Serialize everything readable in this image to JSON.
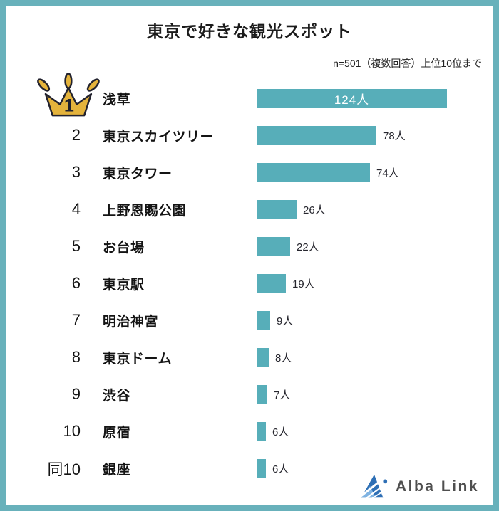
{
  "header": {
    "title": "東京で好きな観光スポット",
    "note": "n=501（複数回答）上位10位まで"
  },
  "chart_data": {
    "type": "bar",
    "orientation": "horizontal",
    "title": "東京で好きな観光スポット",
    "note": "n=501（複数回答）上位10位まで",
    "unit": "人",
    "max_value": 124,
    "value_axis_range": [
      0,
      124
    ],
    "grid": false,
    "legend": false,
    "categories": [
      "浅草",
      "東京スカイツリー",
      "東京タワー",
      "上野恩賜公園",
      "お台場",
      "東京駅",
      "明治神宮",
      "東京ドーム",
      "渋谷",
      "原宿",
      "銀座"
    ],
    "values": [
      124,
      78,
      74,
      26,
      22,
      19,
      9,
      8,
      7,
      6,
      6
    ],
    "rows": [
      {
        "rank": "1",
        "label": "浅草",
        "value": 124,
        "value_label": "124人",
        "crown": true,
        "value_position": "inside"
      },
      {
        "rank": "2",
        "label": "東京スカイツリー",
        "value": 78,
        "value_label": "78人",
        "crown": false,
        "value_position": "outside"
      },
      {
        "rank": "3",
        "label": "東京タワー",
        "value": 74,
        "value_label": "74人",
        "crown": false,
        "value_position": "outside"
      },
      {
        "rank": "4",
        "label": "上野恩賜公園",
        "value": 26,
        "value_label": "26人",
        "crown": false,
        "value_position": "outside"
      },
      {
        "rank": "5",
        "label": "お台場",
        "value": 22,
        "value_label": "22人",
        "crown": false,
        "value_position": "outside"
      },
      {
        "rank": "6",
        "label": "東京駅",
        "value": 19,
        "value_label": "19人",
        "crown": false,
        "value_position": "outside"
      },
      {
        "rank": "7",
        "label": "明治神宮",
        "value": 9,
        "value_label": "9人",
        "crown": false,
        "value_position": "outside"
      },
      {
        "rank": "8",
        "label": "東京ドーム",
        "value": 8,
        "value_label": "8人",
        "crown": false,
        "value_position": "outside"
      },
      {
        "rank": "9",
        "label": "渋谷",
        "value": 7,
        "value_label": "7人",
        "crown": false,
        "value_position": "outside"
      },
      {
        "rank": "10",
        "label": "原宿",
        "value": 6,
        "value_label": "6人",
        "crown": false,
        "value_position": "outside"
      },
      {
        "rank": "同10",
        "label": "銀座",
        "value": 6,
        "value_label": "6人",
        "crown": false,
        "value_position": "outside"
      }
    ]
  },
  "branding": {
    "logo_text": "Alba Link"
  },
  "colors": {
    "bar": "#57AEB9",
    "frame": "#68B1BB",
    "crown_gold": "#E4B33C",
    "crown_outline": "#22222E",
    "text": "#1E1E1E",
    "value_inside_text": "#FFFFFF",
    "logo_blue_dark": "#2E6FB5",
    "logo_blue_light": "#7FB3E2",
    "logo_text_gray": "#4F4F4F"
  }
}
